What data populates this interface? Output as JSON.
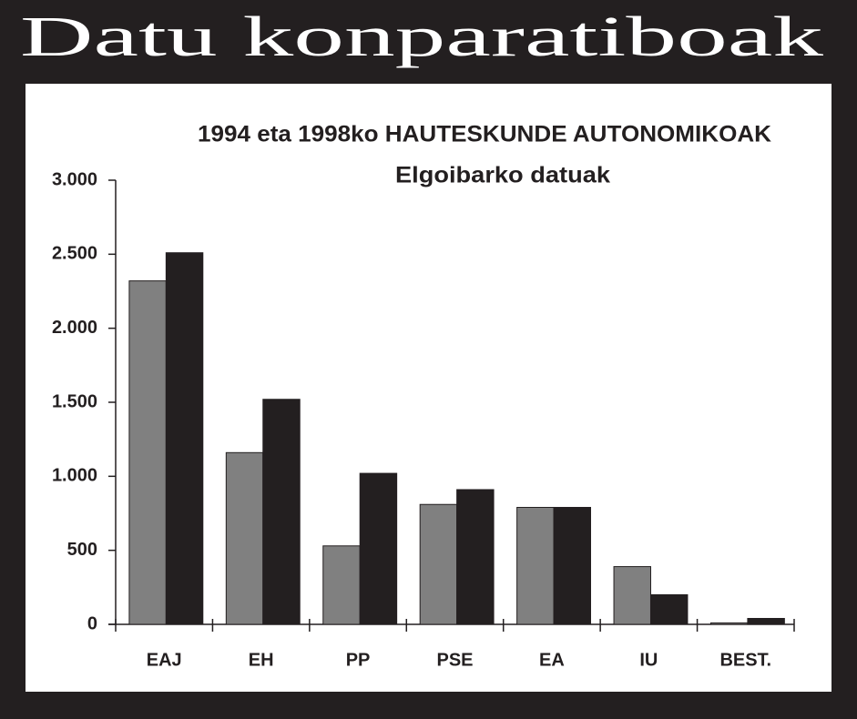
{
  "page_title": "Datu konparatiboak",
  "chart_data": {
    "type": "bar",
    "title": "1994 eta 1998ko HAUTESKUNDE AUTONOMIKOAK",
    "subtitle": "Elgoibarko datuak",
    "categories": [
      "EAJ",
      "EH",
      "PP",
      "PSE",
      "EA",
      "IU",
      "BEST."
    ],
    "series": [
      {
        "color": "#808080",
        "values": [
          2320,
          1160,
          530,
          810,
          790,
          390,
          10
        ]
      },
      {
        "color": "#231f20",
        "values": [
          2510,
          1520,
          1020,
          910,
          790,
          200,
          40
        ]
      }
    ],
    "ylim": [
      0,
      3000
    ],
    "yticks": [
      0,
      500,
      {
        "value": 1000,
        "label": "1.000"
      },
      {
        "value": 1500,
        "label": "1.500"
      },
      {
        "value": 2000,
        "label": "2.000"
      },
      {
        "value": 2500,
        "label": "2.500"
      },
      {
        "value": 3000,
        "label": "3.000"
      }
    ]
  }
}
